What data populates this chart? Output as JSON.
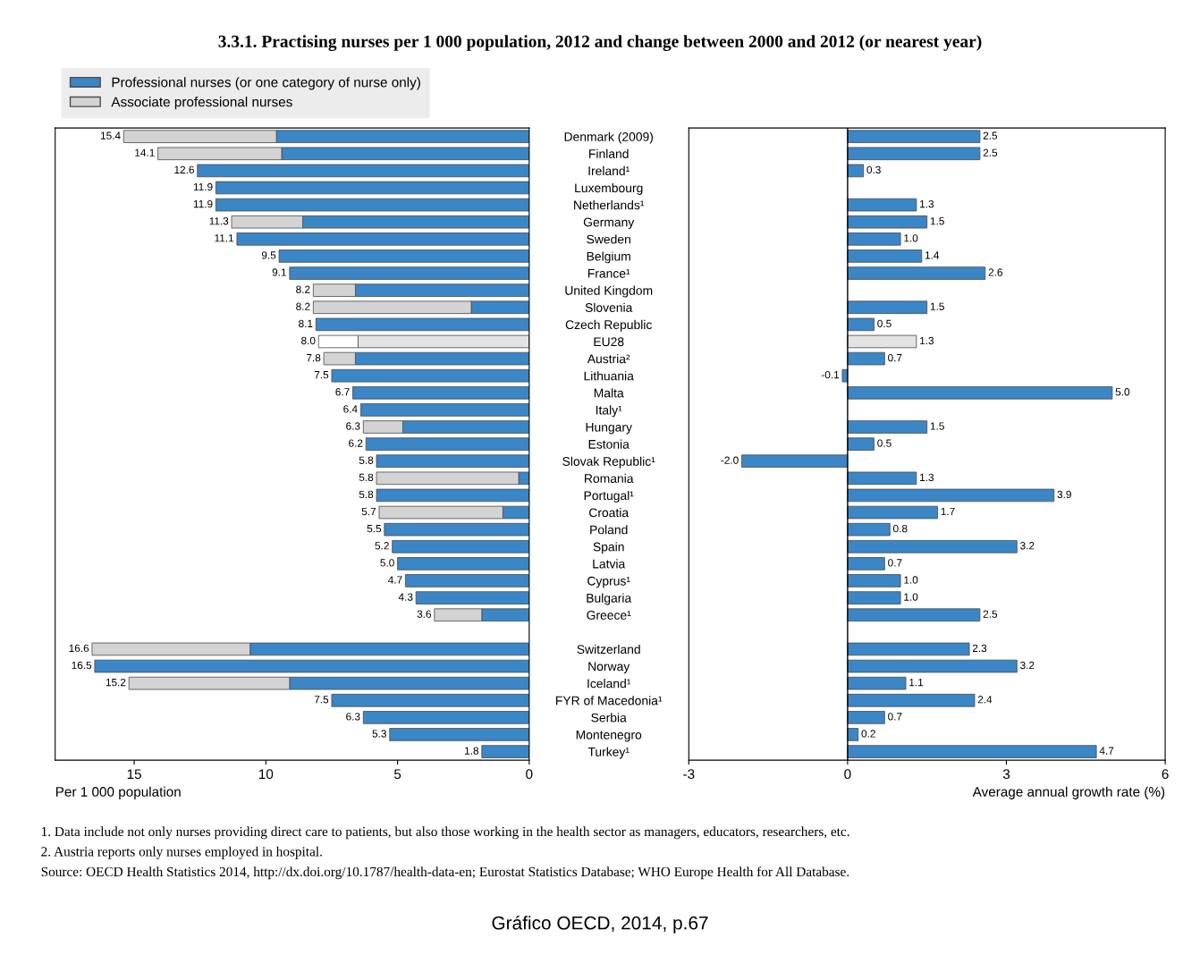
{
  "chart_data": [
    {
      "type": "bar",
      "orientation": "horizontal",
      "stacked": true,
      "title": "3.3.1. Practising nurses per 1 000 population, 2012 and change between 2000 and 2012 (or nearest year)",
      "categories": [
        "Denmark (2009)",
        "Finland",
        "Ireland¹",
        "Luxembourg",
        "Netherlands¹",
        "Germany",
        "Sweden",
        "Belgium",
        "France¹",
        "United Kingdom",
        "Slovenia",
        "Czech Republic",
        "EU28",
        "Austria²",
        "Lithuania",
        "Malta",
        "Italy¹",
        "Hungary",
        "Estonia",
        "Slovak Republic¹",
        "Romania",
        "Portugal¹",
        "Croatia",
        "Poland",
        "Spain",
        "Latvia",
        "Cyprus¹",
        "Bulgaria",
        "Greece¹",
        null,
        "Switzerland",
        "Norway",
        "Iceland¹",
        "FYR of Macedonia¹",
        "Serbia",
        "Montenegro",
        "Turkey¹"
      ],
      "series": [
        {
          "name": "Professional nurses (or one category of nurse only)",
          "color": "#3a86c6",
          "values": [
            9.6,
            9.4,
            12.6,
            11.9,
            11.9,
            8.6,
            11.1,
            9.5,
            9.1,
            6.6,
            2.2,
            8.1,
            6.5,
            6.6,
            7.5,
            6.7,
            6.4,
            4.8,
            6.2,
            5.8,
            0.4,
            5.8,
            1.0,
            5.5,
            5.2,
            5.0,
            4.7,
            4.3,
            1.8,
            null,
            10.6,
            16.5,
            9.1,
            7.5,
            6.3,
            5.3,
            1.8
          ],
          "colors": [
            "#3a86c6",
            "#3a86c6",
            "#3a86c6",
            "#3a86c6",
            "#3a86c6",
            "#3a86c6",
            "#3a86c6",
            "#3a86c6",
            "#3a86c6",
            "#3a86c6",
            "#3a86c6",
            "#3a86c6",
            "#e3e3e3",
            "#3a86c6",
            "#3a86c6",
            "#3a86c6",
            "#3a86c6",
            "#3a86c6",
            "#3a86c6",
            "#3a86c6",
            "#3a86c6",
            "#3a86c6",
            "#3a86c6",
            "#3a86c6",
            "#3a86c6",
            "#3a86c6",
            "#3a86c6",
            "#3a86c6",
            "#3a86c6",
            "#3a86c6",
            "#3a86c6",
            "#3a86c6",
            "#3a86c6",
            "#3a86c6",
            "#3a86c6",
            "#3a86c6",
            "#3a86c6"
          ]
        },
        {
          "name": "Associate professional nurses",
          "color": "#d3d3d3",
          "values": [
            5.8,
            4.7,
            null,
            null,
            null,
            2.7,
            null,
            null,
            null,
            1.6,
            6.0,
            null,
            1.5,
            1.2,
            null,
            null,
            null,
            1.5,
            null,
            null,
            5.4,
            null,
            4.7,
            null,
            null,
            null,
            null,
            null,
            1.8,
            null,
            6.0,
            null,
            6.1,
            null,
            null,
            null,
            null
          ],
          "colors": [
            "#d3d3d3",
            "#d3d3d3",
            "#d3d3d3",
            "#d3d3d3",
            "#d3d3d3",
            "#d3d3d3",
            "#d3d3d3",
            "#d3d3d3",
            "#d3d3d3",
            "#d3d3d3",
            "#d3d3d3",
            "#d3d3d3",
            "#ffffff",
            "#d3d3d3",
            "#d3d3d3",
            "#d3d3d3",
            "#d3d3d3",
            "#d3d3d3",
            "#d3d3d3",
            "#d3d3d3",
            "#d3d3d3",
            "#d3d3d3",
            "#d3d3d3",
            "#d3d3d3",
            "#d3d3d3",
            "#d3d3d3",
            "#d3d3d3",
            "#d3d3d3",
            "#d3d3d3",
            "#d3d3d3",
            "#d3d3d3",
            "#d3d3d3",
            "#d3d3d3",
            "#d3d3d3",
            "#d3d3d3",
            "#d3d3d3",
            "#d3d3d3"
          ]
        }
      ],
      "totals": [
        "15.4",
        "14.1",
        "12.6",
        "11.9",
        "11.9",
        "11.3",
        "11.1",
        "9.5",
        "9.1",
        "8.2",
        "8.2",
        "8.1",
        "8.0",
        "7.8",
        "7.5",
        "6.7",
        "6.4",
        "6.3",
        "6.2",
        "5.8",
        "5.8",
        "5.8",
        "5.7",
        "5.5",
        "5.2",
        "5.0",
        "4.7",
        "4.3",
        "3.6",
        null,
        "16.6",
        "16.5",
        "15.2",
        "7.5",
        "6.3",
        "5.3",
        "1.8"
      ],
      "xlim": [
        18,
        0
      ],
      "xticks": [
        15,
        10,
        5,
        0
      ],
      "xlabel": "Per 1 000 population",
      "legend": "top left",
      "grid": false,
      "annotations": [
        "1. Data include not only nurses providing direct care to patients, but also those working in the health sector as managers, educators, researchers, etc.",
        "2. Austria reports only nurses employed in hospital.",
        "Source: OECD Health Statistics 2014, http://dx.doi.org/10.1787/health-data-en; Eurostat Statistics Database; WHO Europe Health for All Database.",
        "Gráfico OECD, 2014, p.67"
      ]
    },
    {
      "type": "bar",
      "orientation": "horizontal",
      "tick_labels": "x",
      "values": [
        2.5,
        2.5,
        0.3,
        null,
        1.3,
        1.5,
        1.0,
        1.4,
        2.6,
        null,
        1.5,
        0.5,
        1.3,
        0.7,
        -0.1,
        5.0,
        null,
        1.5,
        0.5,
        -2.0,
        1.3,
        3.9,
        1.7,
        0.8,
        3.2,
        0.7,
        1.0,
        1.0,
        2.5,
        null,
        2.3,
        3.2,
        1.1,
        2.4,
        0.7,
        0.2,
        4.7
      ],
      "colors": [
        "#3a86c6",
        "#3a86c6",
        "#3a86c6",
        "#3a86c6",
        "#3a86c6",
        "#3a86c6",
        "#3a86c6",
        "#3a86c6",
        "#3a86c6",
        "#3a86c6",
        "#3a86c6",
        "#3a86c6",
        "#e3e3e3",
        "#3a86c6",
        "#3a86c6",
        "#3a86c6",
        "#3a86c6",
        "#3a86c6",
        "#3a86c6",
        "#3a86c6",
        "#3a86c6",
        "#3a86c6",
        "#3a86c6",
        "#3a86c6",
        "#3a86c6",
        "#3a86c6",
        "#3a86c6",
        "#3a86c6",
        "#3a86c6",
        "#3a86c6",
        "#3a86c6",
        "#3a86c6",
        "#3a86c6",
        "#3a86c6",
        "#3a86c6",
        "#3a86c6",
        "#3a86c6"
      ],
      "value_labels": [
        "2.5",
        "2.5",
        "0.3",
        null,
        "1.3",
        "1.5",
        "1.0",
        "1.4",
        "2.6",
        null,
        "1.5",
        "0.5",
        "1.3",
        "0.7",
        "-0.1",
        "5.0",
        null,
        "1.5",
        "0.5",
        "-2.0",
        "1.3",
        "3.9",
        "1.7",
        "0.8",
        "3.2",
        "0.7",
        "1.0",
        "1.0",
        "2.5",
        null,
        "2.3",
        "3.2",
        "1.1",
        "2.4",
        "0.7",
        "0.2",
        "4.7"
      ],
      "xlim": [
        -3,
        6
      ],
      "xticks": [
        -3,
        0,
        3,
        6
      ],
      "xlabel": "Average annual growth rate (%)",
      "grid": false,
      "ref_lines": [
        {
          "axis": "x",
          "value": 0,
          "color": "#000000"
        }
      ]
    }
  ]
}
